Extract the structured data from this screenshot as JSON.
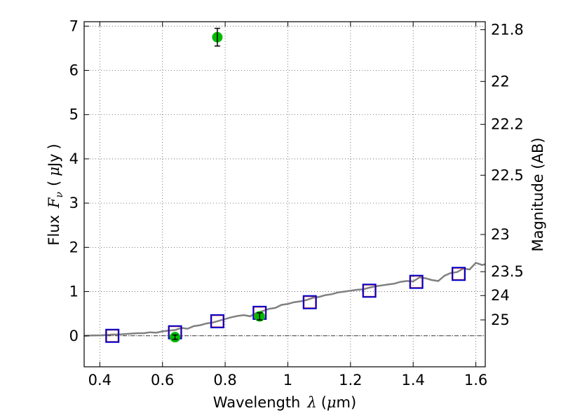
{
  "chart_data": {
    "type": "scatter",
    "xlabel": "Wavelength",
    "xlabel_symbol": "λ",
    "xlabel_unit_prefix": "(",
    "xlabel_unit_mu": "μ",
    "xlabel_unit_rest": "m)",
    "ylabel": "Flux",
    "ylabel_symbol": "F",
    "ylabel_symbol_sub": "ν",
    "ylabel_unit_open": "(",
    "ylabel_unit_mu": "μ",
    "ylabel_unit_rest": "Jy",
    "ylabel_unit_close": ")",
    "y2label": "Magnitude (AB)",
    "xlim": [
      0.35,
      1.63
    ],
    "ylim": [
      -0.7,
      7.1
    ],
    "xticks": [
      0.4,
      0.6,
      0.8,
      1.0,
      1.2,
      1.4,
      1.6
    ],
    "xtick_labels": [
      "0.4",
      "0.6",
      "0.8",
      "1",
      "1.2",
      "1.4",
      "1.6"
    ],
    "yticks": [
      0,
      1,
      2,
      3,
      4,
      5,
      6,
      7
    ],
    "ytick_labels": [
      "0",
      "1",
      "2",
      "3",
      "4",
      "5",
      "6",
      "7"
    ],
    "y2ticks": [
      {
        "label": "21.8",
        "flux": 6.92
      },
      {
        "label": "22",
        "flux": 5.75
      },
      {
        "label": "22.2",
        "flux": 4.78
      },
      {
        "label": "22.5",
        "flux": 3.63
      },
      {
        "label": "23",
        "flux": 2.29
      },
      {
        "label": "23.5",
        "flux": 1.45
      },
      {
        "label": "24",
        "flux": 0.91
      },
      {
        "label": "25",
        "flux": 0.36
      }
    ],
    "grid": true,
    "zero_line": true,
    "colors": {
      "model": "#808080",
      "observed": "#00bb00",
      "model_box": "#0000cc",
      "model_box_inner": "#dd3333",
      "errorbar": "#000000"
    },
    "model_spectrum": {
      "x": [
        0.35,
        0.38,
        0.4,
        0.42,
        0.44,
        0.46,
        0.48,
        0.5,
        0.52,
        0.54,
        0.56,
        0.58,
        0.6,
        0.62,
        0.64,
        0.66,
        0.68,
        0.7,
        0.72,
        0.74,
        0.76,
        0.78,
        0.8,
        0.82,
        0.84,
        0.86,
        0.88,
        0.9,
        0.92,
        0.94,
        0.96,
        0.98,
        1.0,
        1.02,
        1.04,
        1.06,
        1.08,
        1.1,
        1.12,
        1.14,
        1.16,
        1.18,
        1.2,
        1.22,
        1.24,
        1.26,
        1.28,
        1.3,
        1.32,
        1.34,
        1.36,
        1.38,
        1.4,
        1.42,
        1.44,
        1.46,
        1.48,
        1.5,
        1.52,
        1.54,
        1.56,
        1.58,
        1.6,
        1.62,
        1.63
      ],
      "y": [
        0.0,
        0.01,
        0.01,
        0.02,
        0.03,
        0.03,
        0.04,
        0.05,
        0.06,
        0.06,
        0.08,
        0.07,
        0.1,
        0.12,
        0.13,
        0.18,
        0.16,
        0.22,
        0.24,
        0.28,
        0.3,
        0.34,
        0.38,
        0.42,
        0.45,
        0.47,
        0.44,
        0.52,
        0.56,
        0.61,
        0.63,
        0.7,
        0.72,
        0.76,
        0.78,
        0.81,
        0.86,
        0.88,
        0.92,
        0.94,
        0.98,
        1.0,
        1.02,
        1.04,
        1.05,
        1.09,
        1.12,
        1.14,
        1.16,
        1.18,
        1.22,
        1.24,
        1.23,
        1.32,
        1.3,
        1.26,
        1.24,
        1.36,
        1.42,
        1.44,
        1.52,
        1.5,
        1.65,
        1.6,
        1.62
      ]
    },
    "model_photometry": [
      {
        "x": 0.44,
        "y": 0.0
      },
      {
        "x": 0.64,
        "y": 0.08
      },
      {
        "x": 0.775,
        "y": 0.33
      },
      {
        "x": 0.91,
        "y": 0.52
      },
      {
        "x": 1.07,
        "y": 0.76
      },
      {
        "x": 1.26,
        "y": 1.02
      },
      {
        "x": 1.41,
        "y": 1.22
      },
      {
        "x": 1.545,
        "y": 1.4
      }
    ],
    "observed_photometry": [
      {
        "x": 0.64,
        "y": -0.03,
        "err": 0.05
      },
      {
        "x": 0.775,
        "y": 6.75,
        "err": 0.2
      },
      {
        "x": 0.91,
        "y": 0.44,
        "err": 0.08
      }
    ]
  }
}
